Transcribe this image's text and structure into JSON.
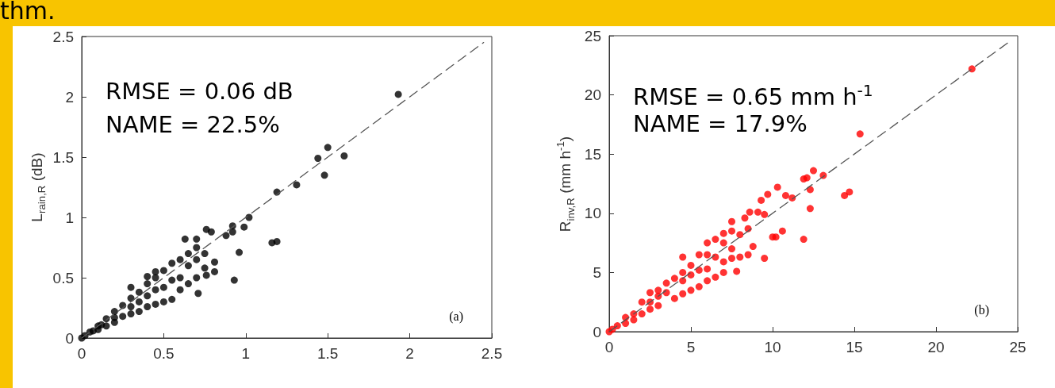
{
  "chart_data": [
    {
      "type": "scatter",
      "title": "thm.",
      "ylabel": "L$_{rain,R}$ (dB)",
      "annotations": [
        "RMSE = 0.06 dB",
        "NAME = 22.5%",
        "(a)"
      ],
      "xlim": [
        0,
        2.5
      ],
      "ylim": [
        0,
        2.5
      ],
      "xticks": [
        0,
        0.5,
        1,
        1.5,
        2,
        2.5
      ],
      "yticks": [
        0,
        0.5,
        1,
        1.5,
        2,
        2.5
      ],
      "grid": false,
      "marker": "circle",
      "series": [
        {
          "type": "line",
          "color": "#555555",
          "line_style": "dashed",
          "marker": "none",
          "x": [
            0,
            2.45
          ],
          "values": [
            0,
            2.45
          ]
        },
        {
          "color": "#000000",
          "x": [
            1.93,
            1.5,
            1.44,
            1.6,
            1.48,
            1.31,
            1.19,
            1.02,
            0.99,
            1.16,
            1.19,
            0.96,
            0.93,
            0.92,
            0.92,
            0.88,
            0.76,
            0.79,
            0.71,
            0.81,
            0.81,
            0.76,
            0.63,
            0.7,
            0.05,
            0.1,
            0.15,
            0.2,
            0.25,
            0.3,
            0.35,
            0.4,
            0.45,
            0.5,
            0.55,
            0.6,
            0.65,
            0.7,
            0.3,
            0.4,
            0.45,
            0.1,
            0.2,
            0.3,
            0.35,
            0.4,
            0.45,
            0.5,
            0.55,
            0.6,
            0.65,
            0.7,
            0.75,
            0.25,
            0.15,
            0.2,
            0.3,
            0.4,
            0.5,
            0.6,
            0.35,
            0.45,
            0.55,
            0.65,
            0.7,
            0.75,
            0.02,
            0,
            0.07,
            0.12
          ],
          "values": [
            2.02,
            1.58,
            1.49,
            1.51,
            1.35,
            1.27,
            1.21,
            1.0,
            0.92,
            0.79,
            0.8,
            0.71,
            0.48,
            0.93,
            0.88,
            0.85,
            0.9,
            0.88,
            0.37,
            0.63,
            0.55,
            0.52,
            0.82,
            0.82,
            0.05,
            0.1,
            0.16,
            0.22,
            0.27,
            0.33,
            0.38,
            0.45,
            0.5,
            0.56,
            0.62,
            0.65,
            0.7,
            0.75,
            0.42,
            0.51,
            0.55,
            0.07,
            0.13,
            0.2,
            0.22,
            0.26,
            0.28,
            0.3,
            0.32,
            0.4,
            0.45,
            0.5,
            0.58,
            0.18,
            0.1,
            0.17,
            0.26,
            0.35,
            0.42,
            0.5,
            0.3,
            0.4,
            0.48,
            0.6,
            0.65,
            0.7,
            0.02,
            0,
            0.06,
            0.11
          ]
        }
      ]
    },
    {
      "type": "scatter",
      "ylabel": "R$_{inv,R}$ (mm h$^{-1}$)",
      "annotations": [
        "RMSE = 0.65 mm h$^{-1}$",
        "NAME = 17.9%",
        "(b)"
      ],
      "xlim": [
        0,
        25
      ],
      "ylim": [
        0,
        25
      ],
      "xticks": [
        0,
        5,
        10,
        15,
        20,
        25
      ],
      "yticks": [
        0,
        5,
        10,
        15,
        20,
        25
      ],
      "grid": false,
      "marker": "circle",
      "series": [
        {
          "type": "line",
          "color": "#555555",
          "line_style": "dashed",
          "marker": "none",
          "x": [
            0,
            24.5
          ],
          "values": [
            0,
            24.5
          ]
        },
        {
          "color": "#ff0000",
          "x": [
            22.2,
            15.35,
            14.4,
            14.7,
            13.1,
            12.5,
            11.9,
            12.1,
            12.3,
            12.3,
            11.9,
            10.8,
            11.2,
            10.3,
            9.7,
            9.3,
            9.5,
            9.5,
            10.6,
            10.0,
            10.2,
            8.6,
            9.1,
            8.3,
            8.8,
            8.5,
            7.8,
            1,
            2,
            3,
            3.5,
            4.5,
            4.5,
            5.5,
            6,
            6.5,
            7,
            7.5,
            7.5,
            6,
            5,
            4,
            2.5,
            1,
            2,
            3,
            4,
            5,
            5.5,
            6,
            6.5,
            7,
            7.5,
            8,
            6,
            7,
            4.5,
            2.5,
            1.5,
            0.5,
            1.5,
            2.5,
            3.5,
            4.5,
            5.5,
            6.5,
            7.5,
            8,
            0.2,
            0,
            3,
            5,
            7,
            8.5
          ],
          "values": [
            22.2,
            16.7,
            11.5,
            11.8,
            13.2,
            13.6,
            12.9,
            13.0,
            12.0,
            10.4,
            7.8,
            11.5,
            11.3,
            12.2,
            11.6,
            11.1,
            9.9,
            6.2,
            8.5,
            8.0,
            8.0,
            10.1,
            10.1,
            9.6,
            7.2,
            6.5,
            5.1,
            1.2,
            2.5,
            3.5,
            4.1,
            5,
            6.3,
            6.5,
            7.5,
            7.8,
            8.3,
            8.5,
            9.3,
            6.5,
            5.6,
            4.5,
            3.3,
            0.7,
            1.5,
            2.2,
            2.8,
            3.5,
            3.8,
            4.3,
            4.6,
            5,
            6.2,
            6.3,
            5.3,
            5.9,
            3.2,
            1.9,
            1,
            0.5,
            1.5,
            2.5,
            3.3,
            4.3,
            5.2,
            6.3,
            7,
            8.2,
            0.2,
            0,
            3,
            4.8,
            7.5,
            8.7
          ]
        }
      ]
    }
  ]
}
